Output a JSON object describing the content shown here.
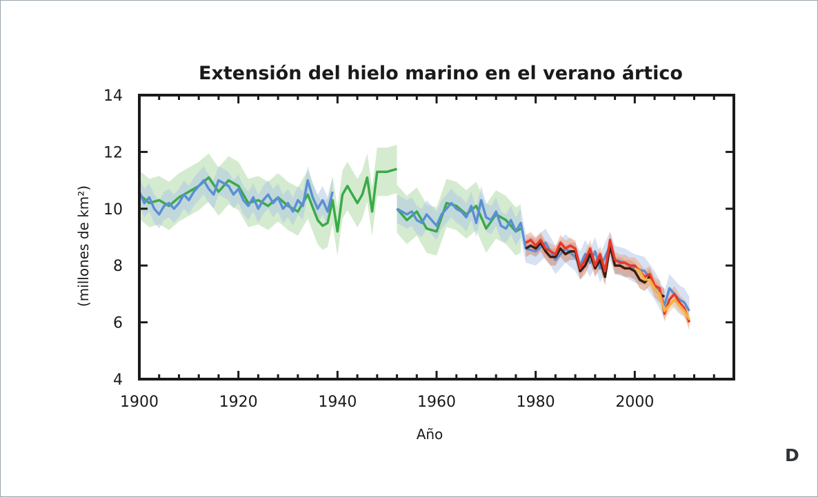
{
  "chart_data": {
    "type": "line",
    "title": "Extensión del hielo marino en el verano ártico",
    "xlabel": "Año",
    "ylabel": "(millones de km²)",
    "xlim": [
      1900,
      2020
    ],
    "ylim": [
      4,
      14
    ],
    "xticks": [
      "1900",
      "1920",
      "1940",
      "1960",
      "1980",
      "2000"
    ],
    "yticks": [
      "4",
      "6",
      "8",
      "10",
      "12",
      "14"
    ],
    "grid": false,
    "legend": "none",
    "series": [
      {
        "color": "#3aaa48",
        "band_color": "#a9d8a0",
        "band_halfwidth": 0.85,
        "x": [
          1900,
          1902,
          1904,
          1906,
          1908,
          1910,
          1912,
          1914,
          1916,
          1918,
          1920,
          1922,
          1924,
          1926,
          1928,
          1930,
          1932,
          1934,
          1936,
          1937,
          1938,
          1939,
          1940,
          1941,
          1942,
          1944,
          1945,
          1946,
          1947,
          1948,
          1950,
          1952,
          null,
          1952,
          1954,
          1956,
          1958,
          1960,
          1962,
          1964,
          1966,
          1968,
          1970,
          1972,
          1974,
          1976,
          1977
        ],
        "y": [
          10.5,
          10.2,
          10.3,
          10.1,
          10.4,
          10.6,
          10.8,
          11.1,
          10.6,
          11.0,
          10.8,
          10.2,
          10.3,
          10.1,
          10.4,
          10.1,
          9.9,
          10.5,
          9.6,
          9.4,
          9.5,
          10.3,
          9.2,
          10.5,
          10.8,
          10.2,
          10.5,
          11.1,
          9.9,
          11.3,
          11.3,
          11.4,
          null,
          10.0,
          9.6,
          9.9,
          9.3,
          9.2,
          10.2,
          10.1,
          9.8,
          10.1,
          9.3,
          9.8,
          9.6,
          9.2,
          9.3
        ]
      },
      {
        "color": "#5b8fd4",
        "band_color": "#aec6e8",
        "band_halfwidth": 0.5,
        "x": [
          1900,
          1901,
          1902,
          1903,
          1904,
          1905,
          1906,
          1907,
          1908,
          1909,
          1910,
          1911,
          1912,
          1913,
          1914,
          1915,
          1916,
          1917,
          1918,
          1919,
          1920,
          1921,
          1922,
          1923,
          1924,
          1925,
          1926,
          1927,
          1928,
          1929,
          1930,
          1931,
          1932,
          1933,
          1934,
          1935,
          1936,
          1937,
          1938,
          1939,
          null,
          1952,
          1953,
          1954,
          1955,
          1956,
          1957,
          1958,
          1959,
          1960,
          1961,
          1962,
          1963,
          1964,
          1965,
          1966,
          1967,
          1968,
          1969,
          1970,
          1971,
          1972,
          1973,
          1974,
          1975,
          1976,
          1977,
          1978,
          1980,
          1982,
          1984,
          1986,
          1988,
          1989,
          1990,
          1991,
          1992,
          1993,
          1994,
          1995,
          1996,
          1998,
          2000,
          2002,
          2004,
          2005,
          2006,
          2007,
          2008,
          2009,
          2010,
          2011
        ],
        "y": [
          10.6,
          10.2,
          10.4,
          10.0,
          9.8,
          10.1,
          10.2,
          10.0,
          10.2,
          10.5,
          10.3,
          10.6,
          10.8,
          11.0,
          10.7,
          10.5,
          11.0,
          10.9,
          10.8,
          10.5,
          10.7,
          10.3,
          10.1,
          10.4,
          10.0,
          10.3,
          10.5,
          10.2,
          10.4,
          10.0,
          10.2,
          9.9,
          10.3,
          10.1,
          11.0,
          10.4,
          10.0,
          10.3,
          9.9,
          10.6,
          null,
          10.0,
          9.9,
          9.8,
          9.9,
          9.6,
          9.5,
          9.8,
          9.6,
          9.4,
          9.8,
          10.0,
          10.2,
          10.0,
          9.9,
          9.7,
          10.1,
          9.5,
          10.3,
          9.7,
          9.6,
          9.9,
          9.4,
          9.3,
          9.6,
          9.2,
          9.5,
          8.6,
          8.5,
          8.8,
          8.2,
          8.6,
          8.3,
          8.0,
          8.4,
          8.1,
          8.5,
          7.9,
          8.3,
          8.7,
          8.2,
          8.1,
          7.9,
          7.8,
          7.3,
          7.0,
          6.6,
          7.2,
          7.0,
          6.8,
          6.7,
          6.4
        ]
      },
      {
        "color": "#3a1e12",
        "band_color": "#cc7f66",
        "band_halfwidth": 0.3,
        "x": [
          1978,
          1979,
          1980,
          1981,
          1982,
          1983,
          1984,
          1985,
          1986,
          1987,
          1988,
          1989,
          1990,
          1991,
          1992,
          1993,
          1994,
          1995,
          1996,
          1997,
          1998,
          1999,
          2000,
          2001,
          2002,
          2003,
          2004,
          2005,
          2006
        ],
        "y": [
          8.6,
          8.7,
          8.6,
          8.8,
          8.5,
          8.3,
          8.3,
          8.6,
          8.4,
          8.5,
          8.5,
          7.8,
          8.0,
          8.4,
          7.9,
          8.2,
          7.6,
          8.7,
          8.0,
          8.0,
          7.9,
          7.9,
          7.8,
          7.5,
          7.4,
          7.6,
          7.2,
          7.0,
          6.9
        ]
      },
      {
        "color": "#e8392b",
        "band_color": "#f0a080",
        "band_halfwidth": 0.28,
        "x": [
          1978,
          1979,
          1980,
          1981,
          1982,
          1983,
          1984,
          1985,
          1986,
          1987,
          1988,
          1989,
          1990,
          1991,
          1992,
          1993,
          1994,
          1995,
          1996,
          1997,
          1998,
          1999,
          2000,
          2001,
          2002,
          2003,
          2004,
          2005,
          2006,
          2007,
          2008,
          2009,
          2010,
          2011
        ],
        "y": [
          8.8,
          8.9,
          8.7,
          8.9,
          8.6,
          8.5,
          8.4,
          8.8,
          8.6,
          8.7,
          8.6,
          7.9,
          8.2,
          8.6,
          8.0,
          8.4,
          7.8,
          8.9,
          8.2,
          8.1,
          8.1,
          8.0,
          8.0,
          7.8,
          7.6,
          7.7,
          7.3,
          7.2,
          6.3,
          6.8,
          7.0,
          6.7,
          6.5,
          6.0
        ]
      },
      {
        "color": "#f4b23e",
        "band_color": "#f6c890",
        "band_halfwidth": 0.25,
        "x": [
          2000,
          2001,
          2002,
          2003,
          2004,
          2005,
          2006,
          2007,
          2008,
          2009,
          2010,
          2011
        ],
        "y": [
          7.9,
          7.8,
          7.5,
          7.5,
          7.2,
          7.0,
          6.4,
          6.6,
          6.8,
          6.6,
          6.4,
          6.1
        ]
      }
    ]
  },
  "panel_letter": "D"
}
